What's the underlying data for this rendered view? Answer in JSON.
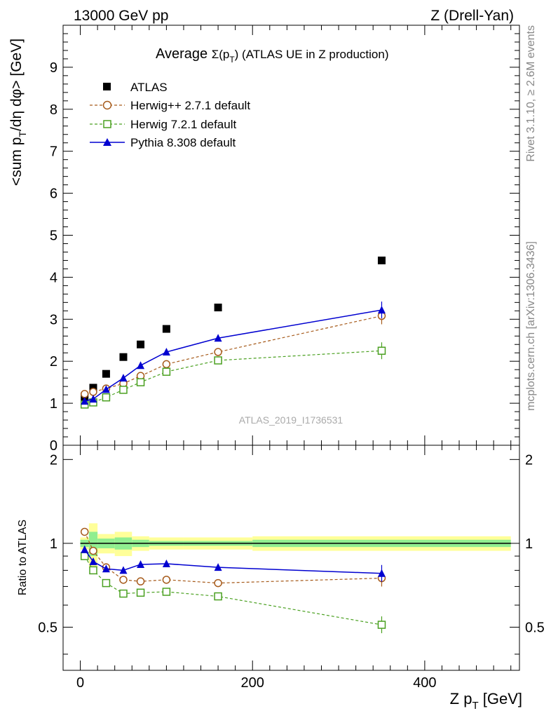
{
  "header": {
    "left": "13000 GeV pp",
    "right": "Z (Drell-Yan)"
  },
  "side_labels": {
    "rivet": "Rivet 3.1.10, ≥ 2.6M events",
    "mcplots": "mcplots.cern.ch [arXiv:1306.3436]"
  },
  "chart_data": {
    "type": "line",
    "title_prefix": "Average ",
    "title_symbol": "Σ(p",
    "title_sub": "T",
    "title_close": ")",
    "title_suffix": " (ATLAS UE in Z production)",
    "watermark": "ATLAS_2019_I1736531",
    "x": [
      5,
      15,
      30,
      50,
      70,
      100,
      160,
      350
    ],
    "xlim": [
      -20,
      510
    ],
    "xlabel_main": "Z p",
    "xlabel_sub": "T",
    "xlabel_unit": " [GeV]",
    "x_ticks": [
      0,
      200,
      400
    ],
    "x_tick_labels": [
      "0",
      "200",
      "400"
    ],
    "ylabel_main": "<sum p",
    "ylabel_sub": "T",
    "ylabel_rest": "/dη dφ> [GeV]",
    "ylim": [
      0,
      10
    ],
    "y_ticks": [
      0,
      1,
      2,
      3,
      4,
      5,
      6,
      7,
      8,
      9
    ],
    "y_tick_labels": [
      "0",
      "1",
      "2",
      "3",
      "4",
      "5",
      "6",
      "7",
      "8",
      "9"
    ],
    "ratio_ylabel": "Ratio to ATLAS",
    "ratio_ylim": [
      0.35,
      2.25
    ],
    "ratio_ticks": [
      0.5,
      1,
      2
    ],
    "ratio_tick_labels": [
      "0.5",
      "1",
      "2"
    ],
    "band_edges": [
      0,
      10,
      20,
      40,
      60,
      80,
      120,
      200,
      500
    ],
    "band_inner": [
      0.03,
      0.1,
      0.04,
      0.05,
      0.03,
      0.02,
      0.02,
      0.03
    ],
    "band_outer": [
      0.05,
      0.18,
      0.08,
      0.1,
      0.06,
      0.05,
      0.05,
      0.06
    ],
    "series": [
      {
        "name": "ATLAS",
        "marker": "square-filled",
        "color": "#000000",
        "values": [
          1.15,
          1.37,
          1.7,
          2.1,
          2.4,
          2.77,
          3.28,
          4.4
        ],
        "ratio": [
          1,
          1,
          1,
          1,
          1,
          1,
          1,
          1
        ]
      },
      {
        "name": "Herwig++ 2.7.1 default",
        "marker": "circle-open",
        "line": "dashed",
        "color": "#a65a1a",
        "values": [
          1.22,
          1.27,
          1.35,
          1.47,
          1.65,
          1.93,
          2.22,
          3.08
        ],
        "ratio": [
          1.1,
          0.94,
          0.82,
          0.74,
          0.73,
          0.74,
          0.72,
          0.75
        ]
      },
      {
        "name": "Herwig 7.2.1 default",
        "marker": "square-open",
        "line": "dashed",
        "color": "#4aa020",
        "values": [
          0.97,
          1.02,
          1.14,
          1.32,
          1.5,
          1.75,
          2.02,
          2.25
        ],
        "ratio": [
          0.9,
          0.8,
          0.72,
          0.66,
          0.665,
          0.67,
          0.645,
          0.51
        ]
      },
      {
        "name": "Pythia 8.308 default",
        "marker": "triangle-filled",
        "line": "solid",
        "color": "#0000d0",
        "values": [
          1.05,
          1.1,
          1.33,
          1.6,
          1.9,
          2.22,
          2.55,
          3.22
        ],
        "ratio": [
          0.95,
          0.86,
          0.81,
          0.8,
          0.84,
          0.845,
          0.82,
          0.78
        ]
      }
    ]
  }
}
